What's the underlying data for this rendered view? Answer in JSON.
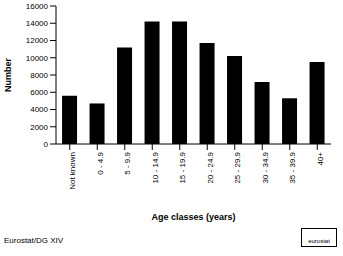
{
  "chart_data": {
    "type": "bar",
    "x_label": "Age classes (years)",
    "y_label": "Number",
    "categories": [
      "Not known",
      "0 - 4.9",
      "5 - 9.9",
      "10 - 14.9",
      "15 - 19.9",
      "20 - 24.9",
      "25 - 29.9",
      "30 - 34.9",
      "35 - 39.9",
      "40+"
    ],
    "values": [
      5600,
      4700,
      11200,
      14200,
      14200,
      11700,
      10200,
      7200,
      5300,
      9500
    ],
    "color": "#000000",
    "ylim": [
      0,
      16000
    ],
    "yticks": [
      0,
      2000,
      4000,
      6000,
      8000,
      10000,
      12000,
      14000,
      16000
    ],
    "grid": false,
    "annotations": [
      "Eurostat/DG XIV",
      "eurostat"
    ]
  }
}
